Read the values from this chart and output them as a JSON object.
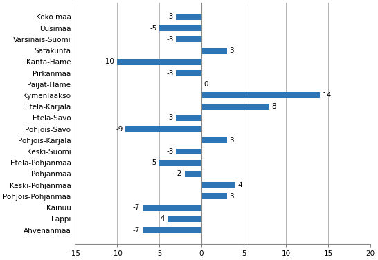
{
  "categories": [
    "Koko maa",
    "Uusimaa",
    "Varsinais-Suomi",
    "Satakunta",
    "Kanta-Häme",
    "Pirkanmaa",
    "Päijät-Häme",
    "Kymenlaakso",
    "Etelä-Karjala",
    "Etelä-Savo",
    "Pohjois-Savo",
    "Pohjois-Karjala",
    "Keski-Suomi",
    "Etelä-Pohjanmaa",
    "Pohjanmaa",
    "Keski-Pohjanmaa",
    "Pohjois-Pohjanmaa",
    "Kainuu",
    "Lappi",
    "Ahvenanmaa"
  ],
  "values": [
    -3,
    -5,
    -3,
    3,
    -10,
    -3,
    0,
    14,
    8,
    -3,
    -9,
    3,
    -3,
    -5,
    -2,
    4,
    3,
    -7,
    -4,
    -7
  ],
  "bar_color": "#2E75B6",
  "xlim": [
    -15,
    20
  ],
  "xticks": [
    -15,
    -10,
    -5,
    0,
    5,
    10,
    15,
    20
  ],
  "label_fontsize": 7.5,
  "value_fontsize": 7.5,
  "figsize": [
    5.46,
    3.76
  ],
  "dpi": 100,
  "bar_height": 0.55
}
